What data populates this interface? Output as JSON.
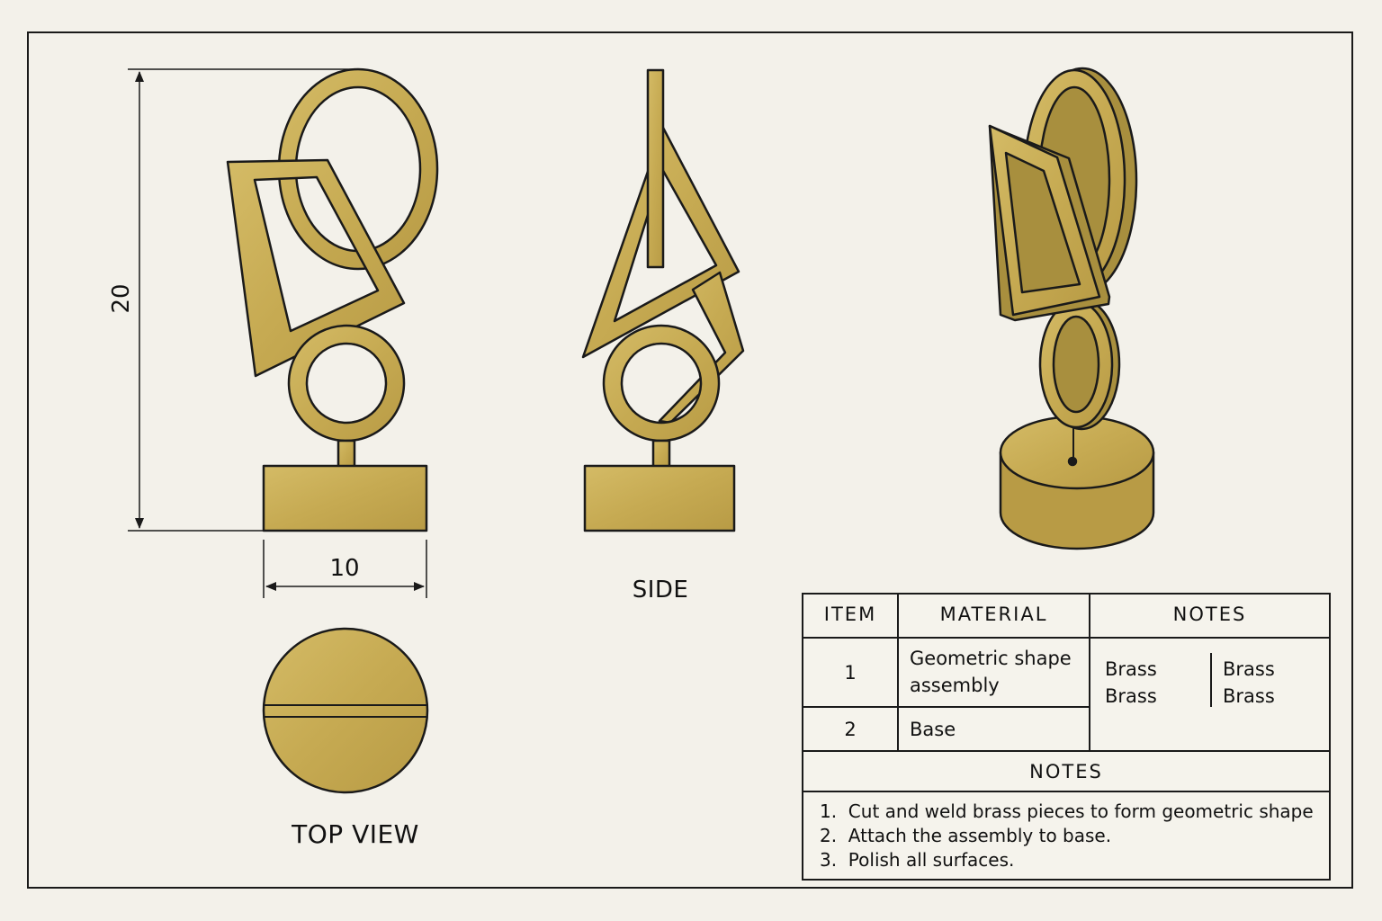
{
  "views": {
    "front": {
      "height_dim": "20",
      "width_dim": "10"
    },
    "side_label": "SIDE",
    "top_label": "TOP VIEW"
  },
  "colors": {
    "brass": "#c9ae57",
    "brass_dark": "#a88f3e",
    "outline": "#1a1a1a",
    "paper": "#f3f1ea"
  },
  "table": {
    "headers": {
      "item": "ITEM",
      "material": "MATERIAL",
      "notes": "NOTES"
    },
    "rows": [
      {
        "item": "1",
        "material_line1": "Geometric shape",
        "material_line2": "assembly"
      },
      {
        "item": "2",
        "material_line1": "Base"
      }
    ],
    "notes_cells": {
      "a1": "Brass",
      "a2": "Brass",
      "b1": "Brass",
      "b2": "Brass"
    },
    "notes_header": "NOTES",
    "notes_list": [
      "1.  Cut and weld brass pieces to form geometric shape",
      "2.  Attach the assembly to base.",
      "3.  Polish all surfaces."
    ]
  }
}
